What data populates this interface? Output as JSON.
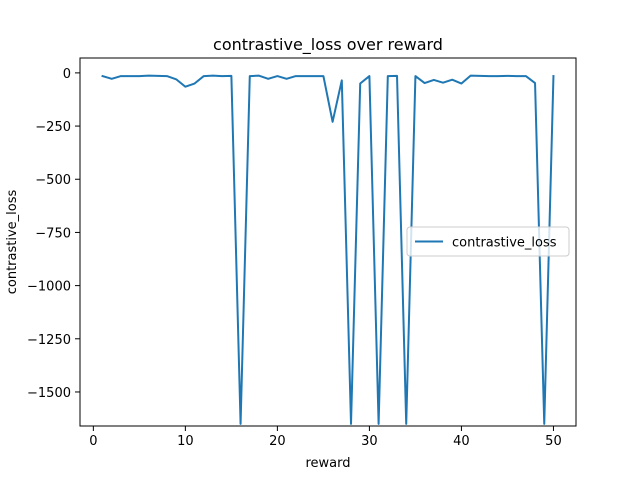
{
  "chart_data": {
    "type": "line",
    "title": "contrastive_loss over reward",
    "xlabel": "reward",
    "ylabel": "contrastive_loss",
    "xlim": [
      -1.45,
      52.45
    ],
    "ylim": [
      -1660,
      70
    ],
    "x_ticks": [
      0,
      10,
      20,
      30,
      40,
      50
    ],
    "x_tick_labels": [
      "0",
      "10",
      "20",
      "30",
      "40",
      "50"
    ],
    "y_ticks": [
      0,
      -250,
      -500,
      -750,
      -1000,
      -1250,
      -1500
    ],
    "y_tick_labels": [
      "0",
      "−250",
      "−500",
      "−750",
      "−1000",
      "−1250",
      "−1500"
    ],
    "grid": false,
    "legend": {
      "position": "center-right",
      "entries": [
        "contrastive_loss"
      ]
    },
    "series": [
      {
        "name": "contrastive_loss",
        "color": "#1f77b4",
        "x": [
          1,
          2,
          3,
          4,
          5,
          6,
          7,
          8,
          9,
          10,
          11,
          12,
          13,
          14,
          15,
          16,
          17,
          18,
          19,
          20,
          21,
          22,
          23,
          24,
          25,
          26,
          27,
          28,
          29,
          30,
          31,
          32,
          33,
          34,
          35,
          36,
          37,
          38,
          39,
          40,
          41,
          42,
          43,
          44,
          45,
          46,
          47,
          48,
          49,
          50
        ],
        "y": [
          -15,
          -28,
          -15,
          -15,
          -15,
          -13,
          -14,
          -15,
          -30,
          -65,
          -50,
          -15,
          -13,
          -15,
          -14,
          -1650,
          -15,
          -13,
          -28,
          -15,
          -28,
          -15,
          -15,
          -15,
          -15,
          -230,
          -35,
          -1650,
          -50,
          -15,
          -1650,
          -15,
          -14,
          -1650,
          -15,
          -48,
          -33,
          -46,
          -32,
          -50,
          -13,
          -14,
          -15,
          -15,
          -14,
          -15,
          -15,
          -48,
          -1650,
          -15
        ]
      }
    ]
  }
}
